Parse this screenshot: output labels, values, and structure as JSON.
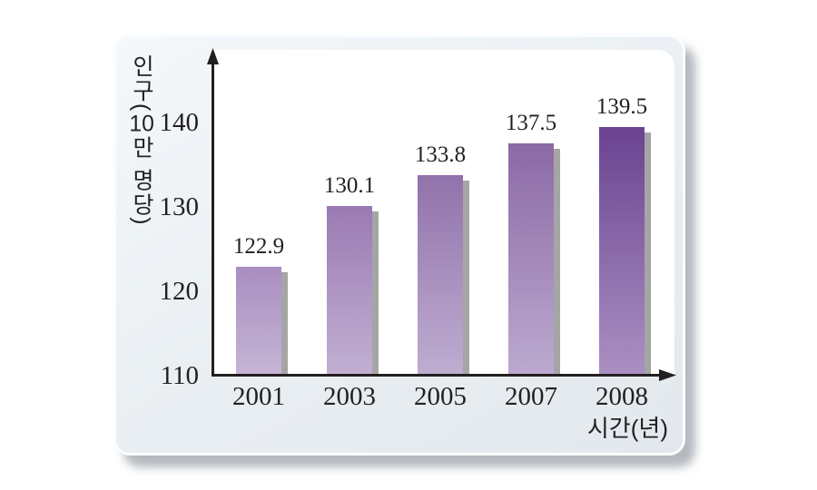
{
  "colors": {
    "page_background": "#ffffff",
    "card_background": "#e9eef2",
    "plot_background": "#ffffff",
    "axis": "#231f20",
    "text": "#231f20",
    "bar_shadow": "#a5a5a5"
  },
  "chart_data": {
    "type": "bar",
    "title": "",
    "categories": [
      "2001",
      "2003",
      "2005",
      "2007",
      "2008"
    ],
    "values": [
      122.9,
      130.1,
      133.8,
      137.5,
      139.5
    ],
    "value_labels": [
      "122.9",
      "130.1",
      "133.8",
      "137.5",
      "139.5"
    ],
    "xlabel": "시간(년)",
    "ylabel": "인구(10만 명당)",
    "ylabel_parts": [
      "인구(",
      "10",
      "만 명당)"
    ],
    "yticks": [
      140,
      130,
      120,
      110
    ],
    "ylim": [
      110,
      143
    ],
    "grid": false,
    "legend": null,
    "bar_gradients": [
      {
        "top": "#a98ec1",
        "bottom": "#c6b5d6"
      },
      {
        "top": "#9a7ab3",
        "bottom": "#c2b0d3"
      },
      {
        "top": "#9172ab",
        "bottom": "#bfadd1"
      },
      {
        "top": "#8b69a5",
        "bottom": "#bcaad0"
      },
      {
        "top": "#6a4391",
        "bottom": "#aa90c2"
      }
    ]
  }
}
